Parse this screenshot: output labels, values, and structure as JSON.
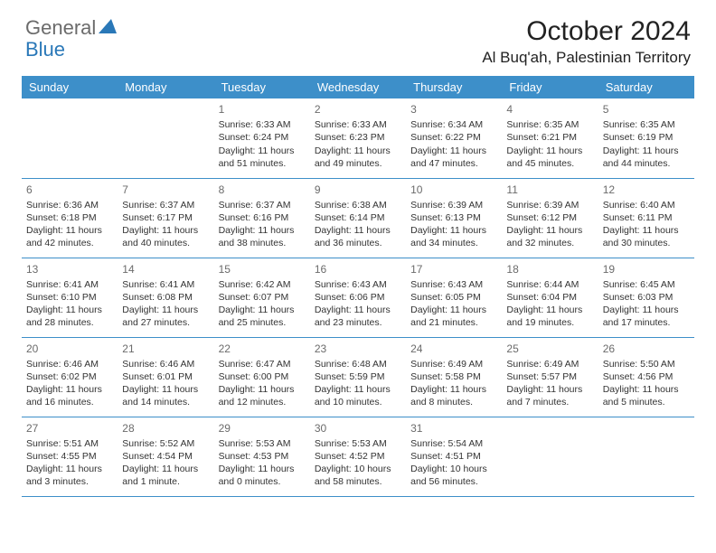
{
  "logo": {
    "general": "General",
    "blue": "Blue"
  },
  "title": "October 2024",
  "location": "Al Buq'ah, Palestinian Territory",
  "colors": {
    "header_bg": "#3d8fc9",
    "border": "#3d8fc9",
    "logo_gray": "#6b6b6b",
    "logo_blue": "#2a78b8"
  },
  "weekdays": [
    "Sunday",
    "Monday",
    "Tuesday",
    "Wednesday",
    "Thursday",
    "Friday",
    "Saturday"
  ],
  "weeks": [
    [
      null,
      null,
      {
        "d": "1",
        "sr": "Sunrise: 6:33 AM",
        "ss": "Sunset: 6:24 PM",
        "dl1": "Daylight: 11 hours",
        "dl2": "and 51 minutes."
      },
      {
        "d": "2",
        "sr": "Sunrise: 6:33 AM",
        "ss": "Sunset: 6:23 PM",
        "dl1": "Daylight: 11 hours",
        "dl2": "and 49 minutes."
      },
      {
        "d": "3",
        "sr": "Sunrise: 6:34 AM",
        "ss": "Sunset: 6:22 PM",
        "dl1": "Daylight: 11 hours",
        "dl2": "and 47 minutes."
      },
      {
        "d": "4",
        "sr": "Sunrise: 6:35 AM",
        "ss": "Sunset: 6:21 PM",
        "dl1": "Daylight: 11 hours",
        "dl2": "and 45 minutes."
      },
      {
        "d": "5",
        "sr": "Sunrise: 6:35 AM",
        "ss": "Sunset: 6:19 PM",
        "dl1": "Daylight: 11 hours",
        "dl2": "and 44 minutes."
      }
    ],
    [
      {
        "d": "6",
        "sr": "Sunrise: 6:36 AM",
        "ss": "Sunset: 6:18 PM",
        "dl1": "Daylight: 11 hours",
        "dl2": "and 42 minutes."
      },
      {
        "d": "7",
        "sr": "Sunrise: 6:37 AM",
        "ss": "Sunset: 6:17 PM",
        "dl1": "Daylight: 11 hours",
        "dl2": "and 40 minutes."
      },
      {
        "d": "8",
        "sr": "Sunrise: 6:37 AM",
        "ss": "Sunset: 6:16 PM",
        "dl1": "Daylight: 11 hours",
        "dl2": "and 38 minutes."
      },
      {
        "d": "9",
        "sr": "Sunrise: 6:38 AM",
        "ss": "Sunset: 6:14 PM",
        "dl1": "Daylight: 11 hours",
        "dl2": "and 36 minutes."
      },
      {
        "d": "10",
        "sr": "Sunrise: 6:39 AM",
        "ss": "Sunset: 6:13 PM",
        "dl1": "Daylight: 11 hours",
        "dl2": "and 34 minutes."
      },
      {
        "d": "11",
        "sr": "Sunrise: 6:39 AM",
        "ss": "Sunset: 6:12 PM",
        "dl1": "Daylight: 11 hours",
        "dl2": "and 32 minutes."
      },
      {
        "d": "12",
        "sr": "Sunrise: 6:40 AM",
        "ss": "Sunset: 6:11 PM",
        "dl1": "Daylight: 11 hours",
        "dl2": "and 30 minutes."
      }
    ],
    [
      {
        "d": "13",
        "sr": "Sunrise: 6:41 AM",
        "ss": "Sunset: 6:10 PM",
        "dl1": "Daylight: 11 hours",
        "dl2": "and 28 minutes."
      },
      {
        "d": "14",
        "sr": "Sunrise: 6:41 AM",
        "ss": "Sunset: 6:08 PM",
        "dl1": "Daylight: 11 hours",
        "dl2": "and 27 minutes."
      },
      {
        "d": "15",
        "sr": "Sunrise: 6:42 AM",
        "ss": "Sunset: 6:07 PM",
        "dl1": "Daylight: 11 hours",
        "dl2": "and 25 minutes."
      },
      {
        "d": "16",
        "sr": "Sunrise: 6:43 AM",
        "ss": "Sunset: 6:06 PM",
        "dl1": "Daylight: 11 hours",
        "dl2": "and 23 minutes."
      },
      {
        "d": "17",
        "sr": "Sunrise: 6:43 AM",
        "ss": "Sunset: 6:05 PM",
        "dl1": "Daylight: 11 hours",
        "dl2": "and 21 minutes."
      },
      {
        "d": "18",
        "sr": "Sunrise: 6:44 AM",
        "ss": "Sunset: 6:04 PM",
        "dl1": "Daylight: 11 hours",
        "dl2": "and 19 minutes."
      },
      {
        "d": "19",
        "sr": "Sunrise: 6:45 AM",
        "ss": "Sunset: 6:03 PM",
        "dl1": "Daylight: 11 hours",
        "dl2": "and 17 minutes."
      }
    ],
    [
      {
        "d": "20",
        "sr": "Sunrise: 6:46 AM",
        "ss": "Sunset: 6:02 PM",
        "dl1": "Daylight: 11 hours",
        "dl2": "and 16 minutes."
      },
      {
        "d": "21",
        "sr": "Sunrise: 6:46 AM",
        "ss": "Sunset: 6:01 PM",
        "dl1": "Daylight: 11 hours",
        "dl2": "and 14 minutes."
      },
      {
        "d": "22",
        "sr": "Sunrise: 6:47 AM",
        "ss": "Sunset: 6:00 PM",
        "dl1": "Daylight: 11 hours",
        "dl2": "and 12 minutes."
      },
      {
        "d": "23",
        "sr": "Sunrise: 6:48 AM",
        "ss": "Sunset: 5:59 PM",
        "dl1": "Daylight: 11 hours",
        "dl2": "and 10 minutes."
      },
      {
        "d": "24",
        "sr": "Sunrise: 6:49 AM",
        "ss": "Sunset: 5:58 PM",
        "dl1": "Daylight: 11 hours",
        "dl2": "and 8 minutes."
      },
      {
        "d": "25",
        "sr": "Sunrise: 6:49 AM",
        "ss": "Sunset: 5:57 PM",
        "dl1": "Daylight: 11 hours",
        "dl2": "and 7 minutes."
      },
      {
        "d": "26",
        "sr": "Sunrise: 5:50 AM",
        "ss": "Sunset: 4:56 PM",
        "dl1": "Daylight: 11 hours",
        "dl2": "and 5 minutes."
      }
    ],
    [
      {
        "d": "27",
        "sr": "Sunrise: 5:51 AM",
        "ss": "Sunset: 4:55 PM",
        "dl1": "Daylight: 11 hours",
        "dl2": "and 3 minutes."
      },
      {
        "d": "28",
        "sr": "Sunrise: 5:52 AM",
        "ss": "Sunset: 4:54 PM",
        "dl1": "Daylight: 11 hours",
        "dl2": "and 1 minute."
      },
      {
        "d": "29",
        "sr": "Sunrise: 5:53 AM",
        "ss": "Sunset: 4:53 PM",
        "dl1": "Daylight: 11 hours",
        "dl2": "and 0 minutes."
      },
      {
        "d": "30",
        "sr": "Sunrise: 5:53 AM",
        "ss": "Sunset: 4:52 PM",
        "dl1": "Daylight: 10 hours",
        "dl2": "and 58 minutes."
      },
      {
        "d": "31",
        "sr": "Sunrise: 5:54 AM",
        "ss": "Sunset: 4:51 PM",
        "dl1": "Daylight: 10 hours",
        "dl2": "and 56 minutes."
      },
      null,
      null
    ]
  ]
}
